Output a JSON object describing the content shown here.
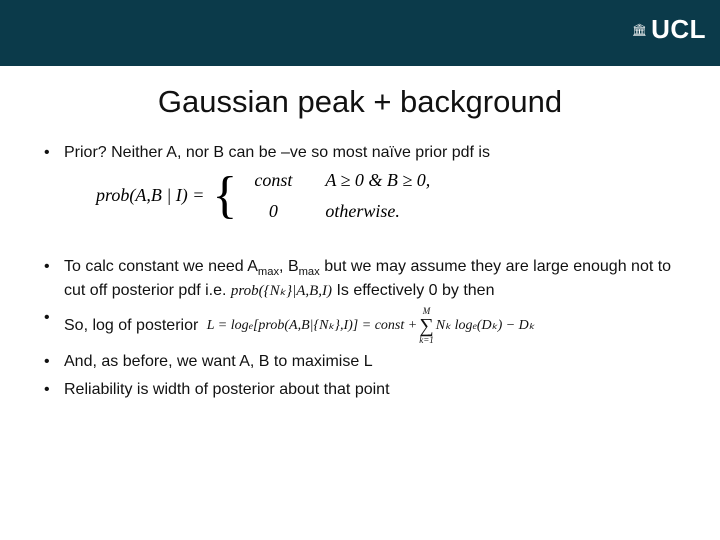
{
  "header": {
    "bar_color": "#0b3a4a",
    "logo_text": "UCL",
    "logo_icon": "🏛"
  },
  "title": "Gaussian peak + background",
  "bullets": {
    "b1": "Prior? Neither A, nor B can be –ve so most naïve prior pdf is",
    "b2_part1": "To calc constant we need A",
    "b2_sub1": "max",
    "b2_part2": ", B",
    "b2_sub2": "max",
    "b2_part3": " but we may assume they are large enough not to cut off posterior pdf i.e. ",
    "b2_inline_math": "prob({Nₖ}|A,B,I)",
    "b2_part4": " Is effectively 0 by then",
    "b3": "So, log of posterior",
    "b4": "And, as before, we want A, B to maximise L",
    "b5": "Reliability is width of posterior about that point"
  },
  "equation": {
    "lhs": "prob(A,B | I) =",
    "case1_val": "const",
    "case1_cond": "A ≥ 0 & B ≥ 0,",
    "case2_val": "0",
    "case2_cond": "otherwise."
  },
  "l_eq": {
    "pre": "L = log",
    "sub_e": "e",
    "bracket": "[prob(A,B|{Nₖ},I)] = const + ",
    "sum_top": "M",
    "sum_sym": "∑",
    "sum_bot": "k=1",
    "tail1": "Nₖ log",
    "tail2": "(Dₖ) − Dₖ"
  }
}
